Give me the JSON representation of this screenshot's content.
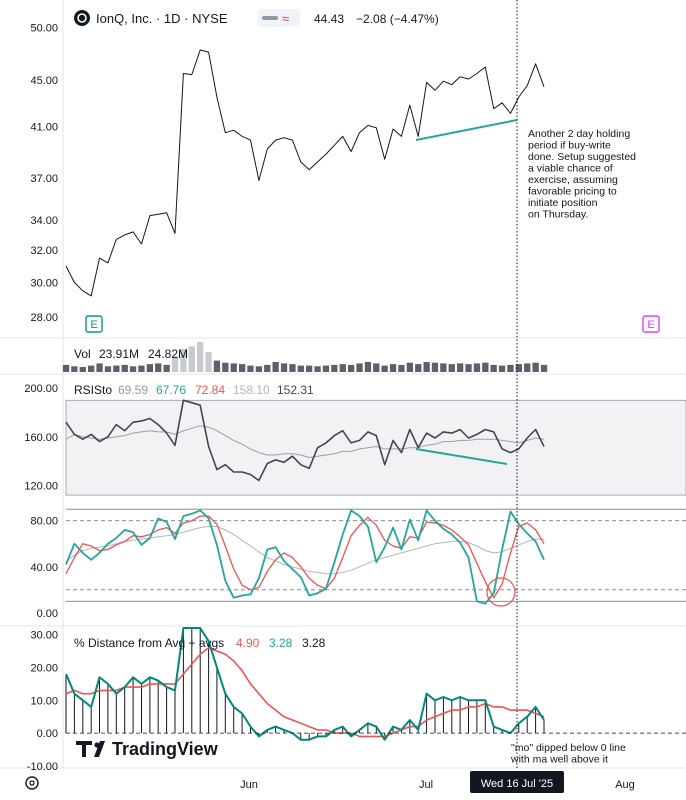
{
  "header": {
    "symbol": "IonQ, Inc. · 1D · NYSE",
    "price": "44.43",
    "change": "−2.08 (−4.47%)",
    "badge": "≈"
  },
  "colors": {
    "price_line": "#131722",
    "trend_line": "#26a69a",
    "rsi_line": "#434651",
    "rsi_ma": "#9e9e9e",
    "stoch_k": "#26a69a",
    "stoch_d": "#ef5350",
    "stoch_ma": "#b2b5be",
    "dist_line": "#00897b",
    "dist_avg": "#ef5350",
    "volume": "#5d606b",
    "earnings_green": "#089981",
    "earnings_purple": "#e040fb"
  },
  "panes": {
    "volume": {
      "label": "Vol",
      "v1": "23.91M",
      "v2": "24.82M"
    },
    "rsisto": {
      "label": "RSISto",
      "v1": "69.59",
      "v2": "67.76",
      "v3": "72.84",
      "v4": "158.10",
      "v5": "152.31"
    },
    "distance": {
      "label": "% Distance from Avg + avgs",
      "v1": "4.90",
      "v2": "3.28",
      "v3": "3.28"
    }
  },
  "annotations": {
    "note_main": [
      "Another 2 day holding",
      "period if buy-write",
      "done. Setup suggested",
      "a viable chance of",
      "exercise, assuming",
      "favorable pricing to",
      "initiate position",
      "on Thursday."
    ],
    "note_mo": [
      "\"mo\" dipped below 0 line",
      "with ma well above it"
    ]
  },
  "earnings_marker": "E",
  "logo": "TradingView",
  "x_axis": {
    "labels": [
      "Jun",
      "Jul",
      "Aug"
    ],
    "crosshair_label": "Wed 16 Jul '25"
  },
  "chart_data": [
    {
      "type": "line",
      "pane": "price",
      "y_ticks": [
        50.0,
        45.0,
        41.0,
        37.0,
        34.0,
        32.0,
        30.0,
        28.0
      ],
      "y_tick_labels": [
        "50.00",
        "45.00",
        "41.00",
        "37.00",
        "34.00",
        "32.00",
        "30.00",
        "28.00"
      ],
      "scale": "log",
      "ylim": [
        27.0,
        52.0
      ],
      "values": [
        31.0,
        30.0,
        29.5,
        29.2,
        31.5,
        31.2,
        32.7,
        33.0,
        33.2,
        32.4,
        34.3,
        34.4,
        34.5,
        33.1,
        45.6,
        45.5,
        47.8,
        47.6,
        43.5,
        40.5,
        40.7,
        40.2,
        39.9,
        36.8,
        39.2,
        39.9,
        40.1,
        39.9,
        38.2,
        37.6,
        38.2,
        38.8,
        39.5,
        40.2,
        39.0,
        40.5,
        41.1,
        40.9,
        38.4,
        40.8,
        40.2,
        42.8,
        40.2,
        44.8,
        44.1,
        44.9,
        44.6,
        45.3,
        45.1,
        45.6,
        46.2,
        42.5,
        43.0,
        42.1,
        43.5,
        44.5,
        46.5,
        44.4
      ]
    },
    {
      "type": "bar",
      "pane": "volume",
      "values": [
        10,
        8,
        7,
        9,
        12,
        8,
        9,
        10,
        8,
        9,
        11,
        12,
        10,
        22,
        32,
        36,
        42,
        28,
        16,
        13,
        12,
        11,
        9,
        8,
        10,
        14,
        12,
        11,
        9,
        9,
        8,
        9,
        10,
        11,
        10,
        12,
        14,
        12,
        9,
        11,
        10,
        13,
        11,
        14,
        13,
        12,
        11,
        12,
        11,
        12,
        13,
        10,
        9,
        10,
        11,
        12,
        13,
        10
      ]
    },
    {
      "type": "line",
      "pane": "rsi",
      "y_ticks": [
        200,
        160,
        120
      ],
      "y_tick_labels": [
        "200.00",
        "160.00",
        "120.00"
      ],
      "ylim": [
        108,
        210
      ],
      "band": [
        112,
        190
      ],
      "rsi": [
        172,
        162,
        158,
        162,
        156,
        160,
        170,
        165,
        172,
        173,
        175,
        170,
        163,
        153,
        190,
        188,
        186,
        152,
        133,
        137,
        131,
        131,
        129,
        124,
        138,
        141,
        139,
        144,
        137,
        134,
        151,
        155,
        161,
        165,
        155,
        157,
        164,
        161,
        137,
        157,
        147,
        166,
        151,
        163,
        159,
        164,
        163,
        166,
        159,
        162,
        166,
        164,
        150,
        147,
        150,
        159,
        166,
        152
      ],
      "rsi_ma": [
        158,
        162,
        160,
        159,
        158,
        159,
        160,
        161,
        163,
        164,
        165,
        164,
        164,
        162,
        165,
        167,
        169,
        168,
        165,
        161,
        157,
        154,
        150,
        147,
        145,
        145,
        146,
        146,
        145,
        143,
        144,
        145,
        146,
        148,
        148,
        150,
        151,
        152,
        150,
        150,
        150,
        151,
        151,
        153,
        154,
        156,
        156,
        157,
        157,
        158,
        158,
        158,
        157,
        156,
        155,
        157,
        159,
        158
      ]
    },
    {
      "type": "line",
      "pane": "stoch",
      "y_ticks": [
        80.0,
        40.0,
        0.0
      ],
      "y_tick_labels": [
        "80.00",
        "40.00",
        "0.00"
      ],
      "ylim": [
        -8,
        98
      ],
      "levels": [
        90,
        80,
        20,
        10
      ],
      "k": [
        42,
        60,
        52,
        46,
        52,
        60,
        65,
        72,
        70,
        59,
        65,
        82,
        79,
        64,
        84,
        86,
        89,
        82,
        59,
        28,
        13,
        15,
        16,
        30,
        55,
        57,
        45,
        38,
        31,
        15,
        17,
        21,
        44,
        68,
        89,
        84,
        75,
        44,
        57,
        74,
        55,
        81,
        63,
        89,
        80,
        73,
        68,
        61,
        48,
        10,
        8,
        17,
        55,
        88,
        77,
        69,
        62,
        46
      ],
      "d": [
        34,
        48,
        60,
        58,
        54,
        55,
        59,
        62,
        67,
        66,
        68,
        72,
        74,
        69,
        78,
        80,
        84,
        84,
        77,
        58,
        38,
        24,
        20,
        22,
        36,
        46,
        52,
        48,
        40,
        30,
        24,
        21,
        30,
        48,
        67,
        76,
        83,
        76,
        63,
        58,
        56,
        66,
        65,
        79,
        78,
        76,
        72,
        66,
        59,
        43,
        27,
        13,
        25,
        52,
        75,
        78,
        72,
        60
      ],
      "ma": [
        45,
        50,
        54,
        56,
        57,
        58,
        60,
        62,
        63,
        64,
        65,
        66,
        67,
        68,
        70,
        72,
        74,
        75,
        75,
        72,
        68,
        63,
        58,
        53,
        48,
        45,
        42,
        40,
        38,
        36,
        35,
        34,
        34,
        35,
        37,
        40,
        43,
        46,
        48,
        50,
        52,
        54,
        56,
        58,
        60,
        61,
        62,
        62,
        61,
        58,
        54,
        52,
        53,
        56,
        59,
        62,
        64,
        64
      ]
    },
    {
      "type": "line",
      "pane": "distance",
      "y_ticks": [
        30.0,
        20.0,
        10.0,
        0.0,
        -10.0
      ],
      "y_tick_labels": [
        "30.00",
        "20.00",
        "10.00",
        "0.00",
        "-10.00"
      ],
      "ylim": [
        -10,
        32
      ],
      "dist": [
        18,
        12,
        10,
        8,
        17,
        15,
        12,
        14,
        17,
        15,
        17,
        16,
        14,
        13,
        46,
        44,
        40,
        28,
        20,
        12,
        8,
        6,
        2,
        -1,
        1,
        2,
        1,
        0,
        -2,
        -2,
        -1,
        -1,
        1,
        2,
        -1,
        1,
        3,
        2,
        -2,
        2,
        1,
        4,
        1,
        12,
        10,
        11,
        10,
        11,
        10,
        10,
        10,
        2,
        1,
        0,
        3,
        5,
        8,
        4
      ],
      "dist_avg": [
        12,
        13,
        12,
        12,
        13,
        13,
        13,
        14,
        14,
        14,
        15,
        15,
        15,
        15,
        18,
        21,
        24,
        26,
        25,
        24,
        22,
        19,
        15,
        12,
        9,
        7,
        5,
        4,
        3,
        2,
        1,
        1,
        0,
        0,
        0,
        -1,
        -1,
        -1,
        -1,
        0,
        1,
        2,
        2,
        4,
        5,
        6,
        7,
        7,
        8,
        8,
        9,
        8,
        8,
        7,
        7,
        7,
        6,
        5
      ]
    }
  ]
}
